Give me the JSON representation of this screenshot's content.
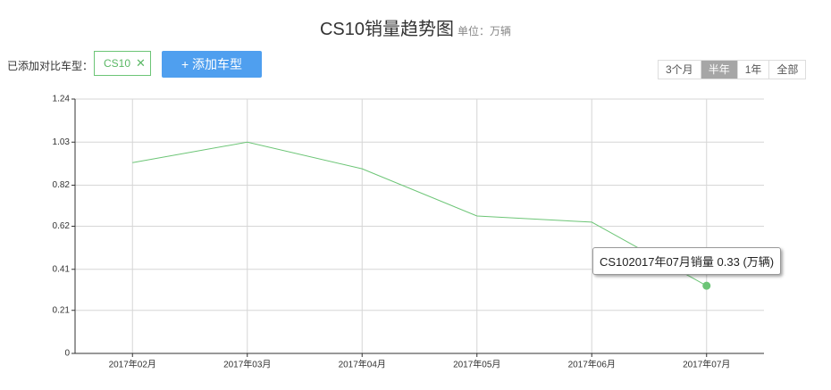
{
  "title": "CS10销量趋势图",
  "subtitle": "单位：万辆",
  "controls": {
    "compare_label": "已添加对比车型：",
    "chips": [
      "CS10"
    ],
    "chip_remove": "✕",
    "add_button": "+ 添加车型",
    "ranges": [
      "3个月",
      "半年",
      "1年",
      "全部"
    ],
    "active_range": 1
  },
  "chart_data": {
    "type": "line",
    "categories": [
      "2017年02月",
      "2017年03月",
      "2017年04月",
      "2017年05月",
      "2017年06月",
      "2017年07月"
    ],
    "series": [
      {
        "name": "CS10",
        "color": "#6cc576",
        "values": [
          0.93,
          1.03,
          0.9,
          0.67,
          0.64,
          0.33
        ]
      }
    ],
    "ylim": [
      0,
      1.24
    ],
    "yticks": [
      0,
      0.21,
      0.41,
      0.62,
      0.82,
      1.03,
      1.24
    ],
    "grid": true,
    "tooltip": {
      "index": 5,
      "text": "CS102017年07月销量",
      "value": 0.33,
      "unit": "(万辆)"
    }
  }
}
